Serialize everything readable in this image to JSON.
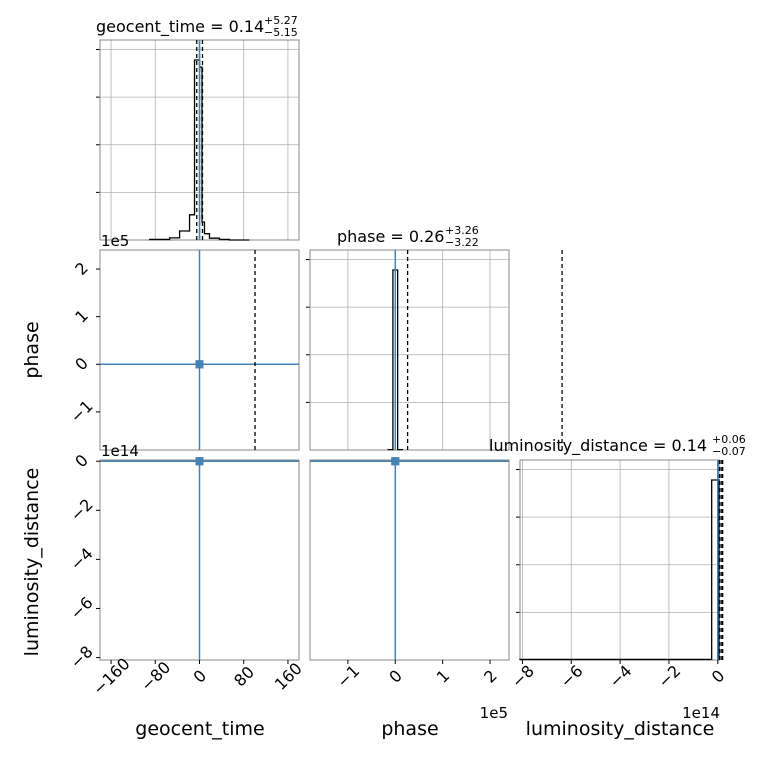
{
  "chart_data": {
    "type": "corner",
    "colors": {
      "truth": "#4682b4",
      "hist": "#000000",
      "density": "#1f3f6e"
    },
    "parameters": [
      {
        "name": "geocent_time",
        "label": "geocent_time",
        "title_main": "geocent_time = 0.14",
        "title_plus": "+5.27",
        "title_minus": "−5.15",
        "median": 0.14,
        "err_plus": 5.27,
        "err_minus": 5.15,
        "range": [
          -180,
          180
        ],
        "ticks": [
          -160,
          -80,
          0,
          80,
          160
        ],
        "tick_labels": [
          "−160",
          "−80",
          "0",
          "80",
          "160"
        ],
        "scale_label": "",
        "truth": 0,
        "hist": {
          "edges": [
            -90,
            -54,
            -36,
            -18,
            -9,
            -4.5,
            0,
            4.5,
            9,
            18,
            36,
            54,
            90
          ],
          "counts": [
            0.3,
            1.2,
            5,
            14,
            100,
            100,
            96,
            10,
            3.5,
            1,
            0.3,
            0
          ]
        }
      },
      {
        "name": "phase",
        "label": "phase",
        "title_main": "phase = 0.26",
        "title_plus": "+3.26",
        "title_minus": "−3.22",
        "median": 0.26,
        "err_plus": 3.26,
        "err_minus": 3.22,
        "range": [
          -1.8,
          2.4
        ],
        "ticks": [
          -1,
          0,
          1,
          2
        ],
        "tick_labels": [
          "−1",
          "0",
          "1",
          "2"
        ],
        "scale_label": "1e5",
        "truth": 0,
        "hist": {
          "edges": [
            -0.15,
            -0.05,
            0.0,
            0.05,
            0.15
          ],
          "counts": [
            0.2,
            100,
            100,
            0.2
          ]
        }
      },
      {
        "name": "luminosity_distance",
        "label": "luminosity_distance",
        "title_main": "luminosity_distance = 0.14",
        "title_plus": "+0.06",
        "title_minus": "−0.07",
        "median": 0.14,
        "err_plus": 0.06,
        "err_minus": 0.07,
        "range": [
          -8.1,
          0.05
        ],
        "ticks": [
          -8,
          -6,
          -4,
          -2,
          0
        ],
        "tick_labels": [
          "−8",
          "−6",
          "−4",
          "−2",
          "0"
        ],
        "scale_label": "1e14",
        "truth": 0,
        "hist": {
          "edges": [
            -8.1,
            -0.25,
            0.05
          ],
          "counts": [
            0.3,
            100
          ]
        }
      }
    ]
  }
}
